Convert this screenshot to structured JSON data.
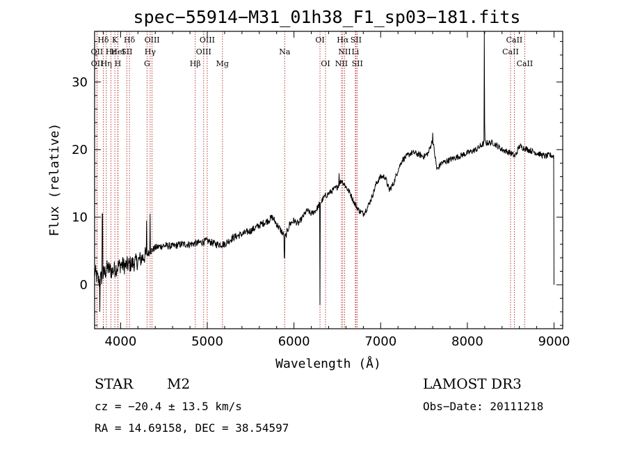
{
  "chart_data": {
    "type": "line",
    "title": "spec−55914−M31_01h38_F1_sp03−181.fits",
    "xlabel": "Wavelength (Å)",
    "ylabel": "Flux (relative)",
    "xlim": [
      3700,
      9100
    ],
    "ylim": [
      -6.5,
      37.5
    ],
    "xticks": [
      4000,
      5000,
      6000,
      7000,
      8000,
      9000
    ],
    "yticks": [
      0,
      10,
      20,
      30
    ],
    "line_color": "#000000",
    "marker_color": "#b22222",
    "spectral_lines": [
      {
        "label": "Hδ",
        "x": 3800,
        "row": 0
      },
      {
        "label": "OII",
        "x": 3727,
        "row": 1
      },
      {
        "label": "OII",
        "x": 3729,
        "row": 2
      },
      {
        "label": "K",
        "x": 3934,
        "row": 0
      },
      {
        "label": "Hε",
        "x": 3889,
        "row": 1
      },
      {
        "label": "Hη",
        "x": 3835,
        "row": 2
      },
      {
        "label": "HeI",
        "x": 3970,
        "row": 1
      },
      {
        "label": "H",
        "x": 3968,
        "row": 2
      },
      {
        "label": "Hδ",
        "x": 4102,
        "row": 0
      },
      {
        "label": "SII",
        "x": 4072,
        "row": 1
      },
      {
        "label": "OIII",
        "x": 4363,
        "row": 0
      },
      {
        "label": "Hγ",
        "x": 4341,
        "row": 1
      },
      {
        "label": "G",
        "x": 4305,
        "row": 2
      },
      {
        "label": "OIII",
        "x": 4999,
        "row": 0
      },
      {
        "label": "OIII",
        "x": 4958,
        "row": 1
      },
      {
        "label": "Hβ",
        "x": 4861,
        "row": 2
      },
      {
        "label": "Mg",
        "x": 5175,
        "row": 2
      },
      {
        "label": "Na",
        "x": 5893,
        "row": 1
      },
      {
        "label": "OI",
        "x": 6300,
        "row": 0
      },
      {
        "label": "OI",
        "x": 6364,
        "row": 2
      },
      {
        "label": "Hα",
        "x": 6563,
        "row": 0
      },
      {
        "label": "SII",
        "x": 6716,
        "row": 0
      },
      {
        "label": "NII",
        "x": 6584,
        "row": 1
      },
      {
        "label": "Li",
        "x": 6708,
        "row": 1
      },
      {
        "label": "NII",
        "x": 6548,
        "row": 2
      },
      {
        "label": "SII",
        "x": 6731,
        "row": 2
      },
      {
        "label": "CaII",
        "x": 8542,
        "row": 0
      },
      {
        "label": "CaII",
        "x": 8498,
        "row": 1
      },
      {
        "label": "CaII",
        "x": 8662,
        "row": 2
      }
    ],
    "spectrum_anchors": [
      [
        3700,
        2.0
      ],
      [
        3750,
        0.5
      ],
      [
        3800,
        1.5
      ],
      [
        3850,
        2.5
      ],
      [
        3900,
        2.0
      ],
      [
        3950,
        2.5
      ],
      [
        4000,
        3.0
      ],
      [
        4050,
        2.8
      ],
      [
        4100,
        3.0
      ],
      [
        4150,
        3.2
      ],
      [
        4200,
        3.5
      ],
      [
        4250,
        4.0
      ],
      [
        4300,
        4.5
      ],
      [
        4350,
        5.0
      ],
      [
        4400,
        5.5
      ],
      [
        4500,
        5.8
      ],
      [
        4600,
        5.7
      ],
      [
        4700,
        6.0
      ],
      [
        4800,
        6.0
      ],
      [
        4900,
        6.2
      ],
      [
        5000,
        6.5
      ],
      [
        5100,
        6.0
      ],
      [
        5200,
        6.0
      ],
      [
        5300,
        7.0
      ],
      [
        5400,
        7.5
      ],
      [
        5500,
        8.0
      ],
      [
        5600,
        8.8
      ],
      [
        5700,
        9.5
      ],
      [
        5750,
        10.0
      ],
      [
        5800,
        9.0
      ],
      [
        5850,
        8.0
      ],
      [
        5900,
        7.0
      ],
      [
        5950,
        9.0
      ],
      [
        6000,
        9.5
      ],
      [
        6050,
        9.0
      ],
      [
        6100,
        10.0
      ],
      [
        6150,
        11.0
      ],
      [
        6200,
        10.5
      ],
      [
        6250,
        11.0
      ],
      [
        6300,
        12.0
      ],
      [
        6350,
        13.0
      ],
      [
        6400,
        13.5
      ],
      [
        6450,
        14.0
      ],
      [
        6500,
        14.5
      ],
      [
        6550,
        15.5
      ],
      [
        6600,
        14.5
      ],
      [
        6650,
        13.5
      ],
      [
        6700,
        12.0
      ],
      [
        6750,
        11.0
      ],
      [
        6800,
        10.5
      ],
      [
        6850,
        11.5
      ],
      [
        6900,
        13.0
      ],
      [
        6950,
        15.0
      ],
      [
        7000,
        16.0
      ],
      [
        7050,
        16.0
      ],
      [
        7100,
        14.0
      ],
      [
        7150,
        15.0
      ],
      [
        7200,
        17.0
      ],
      [
        7250,
        18.5
      ],
      [
        7300,
        19.0
      ],
      [
        7350,
        19.5
      ],
      [
        7400,
        19.5
      ],
      [
        7450,
        19.2
      ],
      [
        7500,
        19.0
      ],
      [
        7550,
        19.5
      ],
      [
        7600,
        21.5
      ],
      [
        7650,
        17.0
      ],
      [
        7700,
        18.0
      ],
      [
        7800,
        18.5
      ],
      [
        7900,
        19.0
      ],
      [
        8000,
        19.5
      ],
      [
        8100,
        20.0
      ],
      [
        8150,
        20.5
      ],
      [
        8200,
        21.0
      ],
      [
        8300,
        21.0
      ],
      [
        8400,
        20.0
      ],
      [
        8500,
        19.5
      ],
      [
        8550,
        19.0
      ],
      [
        8600,
        20.5
      ],
      [
        8700,
        20.0
      ],
      [
        8800,
        19.5
      ],
      [
        8900,
        19.0
      ],
      [
        8950,
        19.2
      ],
      [
        9000,
        19.0
      ]
    ],
    "spikes": [
      [
        3760,
        -4.0
      ],
      [
        3790,
        10.5
      ],
      [
        4300,
        9.5
      ],
      [
        4340,
        10.5
      ],
      [
        5890,
        4.0
      ],
      [
        6300,
        -3.0
      ],
      [
        6520,
        16.5
      ],
      [
        7600,
        22.5
      ],
      [
        8195,
        37.5
      ],
      [
        8200,
        24.0
      ],
      [
        9000,
        0.0
      ]
    ]
  },
  "info": {
    "obj_class": "STAR",
    "subclass": "M2",
    "survey": "LAMOST DR3",
    "cz": "cz = −20.4 ± 13.5 km/s",
    "obs_date": "Obs−Date: 20111218",
    "coords": "RA =  14.69158, DEC =  38.54597"
  }
}
